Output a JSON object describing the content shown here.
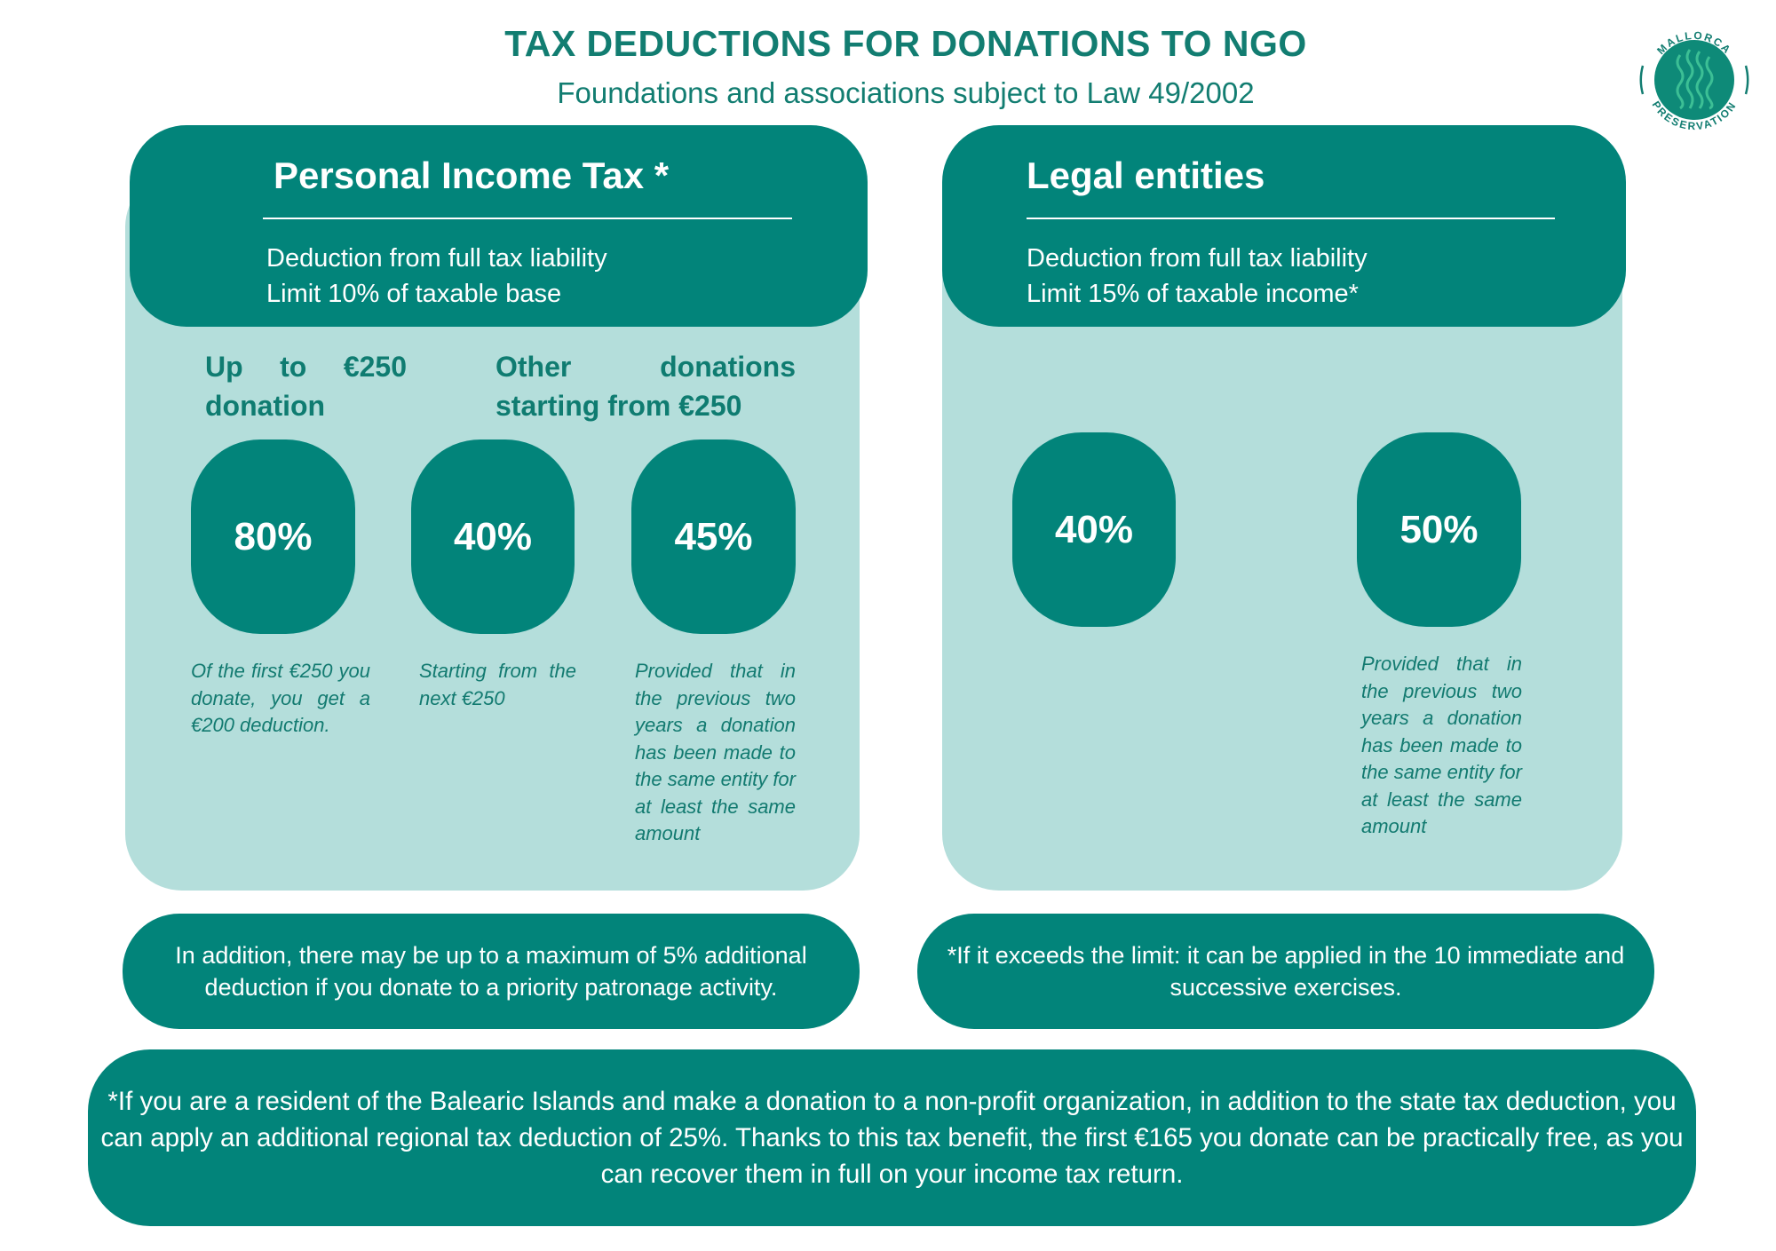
{
  "header": {
    "title": "TAX DEDUCTIONS FOR DONATIONS TO NGO",
    "subtitle": "Foundations and associations subject to Law 49/2002"
  },
  "logo": {
    "text_top": "MALLORCA",
    "text_bottom": "PRESERVATION",
    "icon": "waves-icon"
  },
  "colors": {
    "dark_teal": "#02847a",
    "light_teal": "#b4dedb",
    "text_teal": "#127d71"
  },
  "personal": {
    "title": "Personal Income Tax *",
    "desc": [
      "Deduction from full tax liability",
      "Limit 10% of taxable base"
    ],
    "groups": [
      {
        "line1": "Up to €250",
        "line2": "donation"
      },
      {
        "line1": "Other donations",
        "line2": "starting from €250"
      }
    ],
    "boxes": [
      {
        "value": "80%",
        "note": "Of the first €250 you donate, you get a €200 deduction."
      },
      {
        "value": "40%",
        "note": "Starting from the next €250"
      },
      {
        "value": "45%",
        "note": "Provided that in the previous two years a donation has been made to the same entity for at least the same amount"
      }
    ],
    "footnote": "In addition, there may be up to a maximum of 5% additional deduction if you donate to a priority patronage activity."
  },
  "legal": {
    "title": "Legal entities",
    "desc": [
      "Deduction from full tax liability",
      "Limit 15% of taxable income*"
    ],
    "boxes": [
      {
        "value": "40%",
        "note": ""
      },
      {
        "value": "50%",
        "note": "Provided that in the previous two years a donation has been made to the same entity for at least the same amount"
      }
    ],
    "footnote": "*If it exceeds the limit: it can be applied in the 10 immediate and successive exercises."
  },
  "bottom_note": "*If you are a resident of the Balearic Islands and make a donation to a non-profit organization, in addition to the state tax deduction, you can apply an additional regional tax deduction of 25%. Thanks to this tax benefit, the first €165 you donate can be practically free, as you can recover them in full on your income tax return."
}
